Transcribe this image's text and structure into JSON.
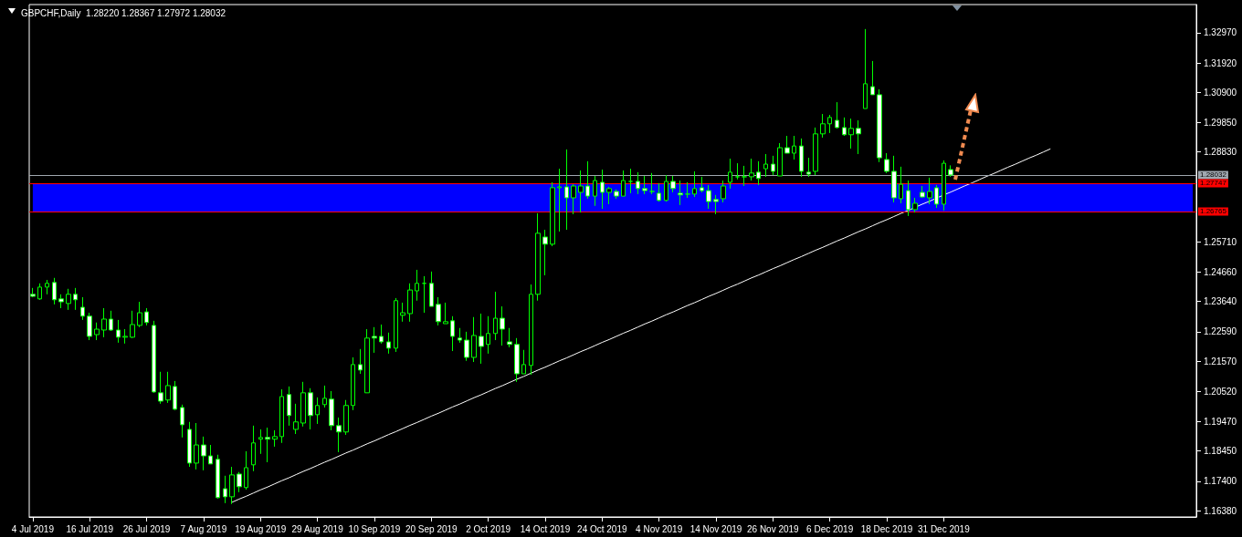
{
  "chart_data": {
    "type": "candlestick",
    "title": "GBPCHF,Daily  1.28220 1.28367 1.27972 1.28032",
    "categories": [
      "4 Jul 2019",
      null,
      null,
      null,
      null,
      null,
      null,
      null,
      "16 Jul 2019",
      null,
      null,
      null,
      null,
      null,
      null,
      null,
      "26 Jul 2019",
      null,
      null,
      null,
      null,
      null,
      null,
      null,
      "7 Aug 2019",
      null,
      null,
      null,
      null,
      null,
      null,
      null,
      "19 Aug 2019",
      null,
      null,
      null,
      null,
      null,
      null,
      null,
      "29 Aug 2019",
      null,
      null,
      null,
      null,
      null,
      null,
      null,
      "10 Sep 2019",
      null,
      null,
      null,
      null,
      null,
      null,
      null,
      "20 Sep 2019",
      null,
      null,
      null,
      null,
      null,
      null,
      null,
      "2 Oct 2019",
      null,
      null,
      null,
      null,
      null,
      null,
      null,
      "14 Oct 2019",
      null,
      null,
      null,
      null,
      null,
      null,
      null,
      "24 Oct 2019",
      null,
      null,
      null,
      null,
      null,
      null,
      null,
      "4 Nov 2019",
      null,
      null,
      null,
      null,
      null,
      null,
      null,
      "14 Nov 2019",
      null,
      null,
      null,
      null,
      null,
      null,
      null,
      "26 Nov 2019",
      null,
      null,
      null,
      null,
      null,
      null,
      null,
      "6 Dec 2019",
      null,
      null,
      null,
      null,
      null,
      null,
      null,
      "18 Dec 2019",
      null,
      null,
      null,
      null,
      null,
      null,
      null,
      "31 Dec 2019",
      null,
      null,
      null,
      null,
      null,
      null,
      null,
      null,
      null,
      null,
      null,
      null,
      null,
      null,
      null,
      null,
      null,
      null,
      null,
      null,
      null,
      null,
      null,
      null,
      null,
      null,
      null,
      null,
      null,
      null,
      null,
      null,
      null,
      null,
      null
    ],
    "color": "#00ff00",
    "ohlc": [
      [
        1.2389,
        1.2411,
        1.2379,
        1.2382
      ],
      [
        1.2373,
        1.2427,
        1.237,
        1.2414
      ],
      [
        1.2414,
        1.2439,
        1.2389,
        1.2427
      ],
      [
        1.243,
        1.2446,
        1.2354,
        1.237
      ],
      [
        1.2373,
        1.2389,
        1.2341,
        1.2363
      ],
      [
        1.2357,
        1.2408,
        1.2335,
        1.2389
      ],
      [
        1.2389,
        1.2411,
        1.2335,
        1.237
      ],
      [
        1.2344,
        1.2379,
        1.23,
        1.2313
      ],
      [
        1.2313,
        1.2325,
        1.223,
        1.2243
      ],
      [
        1.2249,
        1.2291,
        1.223,
        1.2268
      ],
      [
        1.2265,
        1.2341,
        1.224,
        1.2303
      ],
      [
        1.2303,
        1.2332,
        1.2262,
        1.2265
      ],
      [
        1.2265,
        1.23,
        1.2221,
        1.224
      ],
      [
        1.224,
        1.2268,
        1.2218,
        1.2243
      ],
      [
        1.224,
        1.2332,
        1.2237,
        1.2284
      ],
      [
        1.2281,
        1.2363,
        1.2275,
        1.2325
      ],
      [
        1.2328,
        1.2341,
        1.2281,
        1.2291
      ],
      [
        1.2281,
        1.2297,
        1.2047,
        1.205
      ],
      [
        1.2047,
        1.212,
        1.2009,
        1.2018
      ],
      [
        1.2022,
        1.212,
        1.2012,
        1.2072
      ],
      [
        1.2069,
        1.2088,
        1.1987,
        1.199
      ],
      [
        1.1996,
        1.2006,
        1.1892,
        1.1936
      ],
      [
        1.192,
        1.1946,
        1.179,
        1.1803
      ],
      [
        1.1803,
        1.1942,
        1.1781,
        1.1866
      ],
      [
        1.1866,
        1.1895,
        1.1778,
        1.1828
      ],
      [
        1.1828,
        1.1866,
        1.18,
        1.18
      ],
      [
        1.1816,
        1.1832,
        1.168,
        1.1683
      ],
      [
        1.1714,
        1.1759,
        1.1664,
        1.1686
      ],
      [
        1.1686,
        1.179,
        1.1661,
        1.1762
      ],
      [
        1.1765,
        1.1772,
        1.1702,
        1.1721
      ],
      [
        1.1718,
        1.1844,
        1.1711,
        1.1787
      ],
      [
        1.1797,
        1.1933,
        1.1775,
        1.1873
      ],
      [
        1.1886,
        1.192,
        1.1835,
        1.1892
      ],
      [
        1.1892,
        1.1926,
        1.1806,
        1.1886
      ],
      [
        1.1886,
        1.1917,
        1.186,
        1.1895
      ],
      [
        1.1895,
        1.2059,
        1.1873,
        1.2034
      ],
      [
        1.2041,
        1.2069,
        1.1933,
        1.1968
      ],
      [
        1.192,
        1.2009,
        1.1904,
        1.1946
      ],
      [
        1.1942,
        1.2085,
        1.193,
        1.2047
      ],
      [
        1.2047,
        1.2063,
        1.192,
        1.1968
      ],
      [
        1.1971,
        1.2031,
        1.1939,
        1.2003
      ],
      [
        1.2006,
        1.2072,
        1.1996,
        1.2028
      ],
      [
        1.2025,
        1.2053,
        1.1917,
        1.1933
      ],
      [
        1.1933,
        1.1961,
        1.1841,
        1.1911
      ],
      [
        1.1911,
        1.2022,
        1.1901,
        1.2003
      ],
      [
        1.2003,
        1.217,
        1.1987,
        1.2145
      ],
      [
        1.2145,
        1.2199,
        1.2113,
        1.2126
      ],
      [
        1.2047,
        1.2268,
        1.2047,
        1.2237
      ],
      [
        1.2243,
        1.2275,
        1.2186,
        1.2237
      ],
      [
        1.2243,
        1.2284,
        1.2218,
        1.2224
      ],
      [
        1.2224,
        1.2256,
        1.2183,
        1.2202
      ],
      [
        1.2202,
        1.2376,
        1.2189,
        1.2367
      ],
      [
        1.2316,
        1.236,
        1.2294,
        1.2325
      ],
      [
        1.2322,
        1.2427,
        1.2294,
        1.2404
      ],
      [
        1.2401,
        1.2474,
        1.2367,
        1.2427
      ],
      [
        1.2427,
        1.2452,
        1.2325,
        1.2427
      ],
      [
        1.2427,
        1.2468,
        1.2347,
        1.2347
      ],
      [
        1.2354,
        1.2379,
        1.2281,
        1.2294
      ],
      [
        1.2287,
        1.236,
        1.2287,
        1.2294
      ],
      [
        1.2297,
        1.2313,
        1.2192,
        1.2243
      ],
      [
        1.2237,
        1.2272,
        1.2221,
        1.223
      ],
      [
        1.223,
        1.2259,
        1.2158,
        1.217
      ],
      [
        1.217,
        1.231,
        1.2154,
        1.2246
      ],
      [
        1.2243,
        1.2322,
        1.2148,
        1.2208
      ],
      [
        1.2215,
        1.2313,
        1.2183,
        1.2253
      ],
      [
        1.2253,
        1.2398,
        1.223,
        1.2306
      ],
      [
        1.2306,
        1.2347,
        1.2211,
        1.2268
      ],
      [
        1.2224,
        1.2272,
        1.2205,
        1.2215
      ],
      [
        1.2215,
        1.2237,
        1.2085,
        1.2113
      ],
      [
        1.2113,
        1.2196,
        1.2113,
        1.2145
      ],
      [
        1.2142,
        1.2423,
        1.211,
        1.2389
      ],
      [
        1.2389,
        1.267,
        1.2367,
        1.2601
      ],
      [
        1.2588,
        1.2613,
        1.2455,
        1.2563
      ],
      [
        1.2563,
        1.2778,
        1.2556,
        1.2759
      ],
      [
        1.2759,
        1.2825,
        1.2607,
        1.2762
      ],
      [
        1.2762,
        1.2892,
        1.2613,
        1.2724
      ],
      [
        1.2724,
        1.2771,
        1.2667,
        1.2765
      ],
      [
        1.2743,
        1.2819,
        1.2673,
        1.2765
      ],
      [
        1.2765,
        1.2851,
        1.2721,
        1.273
      ],
      [
        1.273,
        1.28,
        1.2696,
        1.2784
      ],
      [
        1.2778,
        1.2822,
        1.2686,
        1.2743
      ],
      [
        1.2743,
        1.2762,
        1.2702,
        1.2756
      ],
      [
        1.2746,
        1.2753,
        1.2721,
        1.273
      ],
      [
        1.273,
        1.2819,
        1.273,
        1.2784
      ],
      [
        1.2781,
        1.2825,
        1.274,
        1.2781
      ],
      [
        1.2781,
        1.2813,
        1.2737,
        1.2756
      ],
      [
        1.2756,
        1.28,
        1.2737,
        1.2749
      ],
      [
        1.2746,
        1.281,
        1.2737,
        1.2746
      ],
      [
        1.274,
        1.2775,
        1.2711,
        1.2715
      ],
      [
        1.2715,
        1.2803,
        1.2711,
        1.2781
      ],
      [
        1.2781,
        1.28,
        1.2743,
        1.2756
      ],
      [
        1.274,
        1.2784,
        1.2699,
        1.2734
      ],
      [
        1.2737,
        1.2778,
        1.2724,
        1.2737
      ],
      [
        1.2737,
        1.2816,
        1.2727,
        1.2756
      ],
      [
        1.2759,
        1.2797,
        1.2743,
        1.2749
      ],
      [
        1.2749,
        1.2768,
        1.2686,
        1.2711
      ],
      [
        1.2718,
        1.2734,
        1.2667,
        1.2711
      ],
      [
        1.2721,
        1.2784,
        1.2708,
        1.2765
      ],
      [
        1.2778,
        1.286,
        1.2756,
        1.2813
      ],
      [
        1.2797,
        1.2844,
        1.2788,
        1.2797
      ],
      [
        1.2797,
        1.2835,
        1.2765,
        1.2797
      ],
      [
        1.2797,
        1.286,
        1.2784,
        1.281
      ],
      [
        1.2813,
        1.2851,
        1.2768,
        1.2791
      ],
      [
        1.2825,
        1.2876,
        1.2797,
        1.2841
      ],
      [
        1.2841,
        1.287,
        1.2803,
        1.2816
      ],
      [
        1.28,
        1.2914,
        1.28,
        1.2898
      ],
      [
        1.2898,
        1.2939,
        1.2879,
        1.2879
      ],
      [
        1.2879,
        1.2939,
        1.2857,
        1.2904
      ],
      [
        1.2904,
        1.293,
        1.2797,
        1.2816
      ],
      [
        1.2813,
        1.2863,
        1.2797,
        1.2806
      ],
      [
        1.2816,
        1.2968,
        1.2803,
        1.2946
      ],
      [
        1.2946,
        1.3015,
        1.2933,
        1.2981
      ],
      [
        1.2981,
        1.3012,
        1.2949,
        1.3003
      ],
      [
        1.2993,
        1.3056,
        1.2965,
        1.2968
      ],
      [
        1.2968,
        1.3003,
        1.2939,
        1.2943
      ],
      [
        1.2943,
        1.2999,
        1.2895,
        1.2965
      ],
      [
        1.2965,
        1.2993,
        1.2876,
        1.2946
      ],
      [
        1.3034,
        1.331,
        1.3034,
        1.312
      ],
      [
        1.311,
        1.3199,
        1.3082,
        1.3082
      ],
      [
        1.3082,
        1.3101,
        1.2848,
        1.2863
      ],
      [
        1.2857,
        1.2879,
        1.281,
        1.2816
      ],
      [
        1.2816,
        1.287,
        1.2708,
        1.2724
      ],
      [
        1.2721,
        1.2832,
        1.2705,
        1.2771
      ],
      [
        1.2749,
        1.2784,
        1.2661,
        1.2683
      ],
      [
        1.2683,
        1.2724,
        1.2673,
        1.2705
      ],
      [
        1.2743,
        1.2765,
        1.2724,
        1.2727
      ],
      [
        1.2724,
        1.2794,
        1.2702,
        1.2746
      ],
      [
        1.2759,
        1.2768,
        1.2689,
        1.2702
      ],
      [
        1.2702,
        1.2854,
        1.268,
        1.2844
      ],
      [
        1.2822,
        1.28367,
        1.27972,
        1.28032
      ],
      null,
      null,
      null,
      null,
      null,
      null,
      null,
      null,
      null,
      null,
      null,
      null,
      null,
      null,
      null,
      null,
      null,
      null,
      null,
      null,
      null,
      null,
      null,
      null,
      null,
      null,
      null,
      null,
      null,
      null,
      null,
      null,
      null,
      null
    ],
    "series": [
      {
        "type": "line",
        "color": "#ffffff",
        "values": [
          null,
          null,
          null,
          null,
          null,
          null,
          null,
          null,
          null,
          null,
          null,
          null,
          null,
          null,
          null,
          null,
          null,
          null,
          null,
          null,
          null,
          null,
          null,
          null,
          null,
          null,
          null,
          null,
          1.1667,
          1.1678,
          1.1688,
          1.1699,
          1.171,
          1.172,
          1.1731,
          1.1742,
          1.1752,
          1.1763,
          1.1774,
          1.1784,
          1.1795,
          1.1806,
          1.1816,
          1.1827,
          1.1838,
          1.1848,
          1.1859,
          1.187,
          1.188,
          1.1891,
          1.1902,
          1.1912,
          1.1923,
          1.1934,
          1.1944,
          1.1955,
          1.1966,
          1.1976,
          1.1987,
          1.1998,
          1.2008,
          1.2019,
          1.203,
          1.204,
          1.2051,
          1.2062,
          1.2072,
          1.2083,
          1.2094,
          1.2104,
          1.2115,
          1.2126,
          1.2136,
          1.2147,
          1.2158,
          1.2168,
          1.2179,
          1.219,
          1.22,
          1.2211,
          1.2222,
          1.2232,
          1.2243,
          1.2254,
          1.2264,
          1.2275,
          1.2286,
          1.2296,
          1.2307,
          1.2318,
          1.2328,
          1.2339,
          1.235,
          1.236,
          1.2371,
          1.2382,
          1.2392,
          1.2403,
          1.2414,
          1.2424,
          1.2435,
          1.2446,
          1.2456,
          1.2467,
          1.2478,
          1.2488,
          1.2499,
          1.251,
          1.252,
          1.2531,
          1.2542,
          1.2552,
          1.2563,
          1.2574,
          1.2584,
          1.2595,
          1.2606,
          1.2616,
          1.2627,
          1.2638,
          1.2648,
          1.2659,
          1.267,
          1.268,
          1.2691,
          1.2702,
          1.2712,
          1.2723,
          1.2734,
          1.2744,
          1.2755,
          1.2766,
          1.2776,
          1.2787,
          1.2798,
          1.2808,
          1.2819,
          1.283,
          1.284,
          1.2851,
          1.2862,
          1.2872,
          1.2883,
          1.2894,
          null,
          null,
          null,
          null,
          null,
          null,
          null,
          null,
          null,
          null,
          null,
          null,
          null,
          null,
          null,
          null,
          null,
          null,
          null,
          null
        ]
      }
    ],
    "ylim": [
      1.1616,
      1.3395
    ],
    "yticks": [
      {
        "value": 1.3297,
        "label": "1.32970"
      },
      {
        "value": 1.3192,
        "label": "1.31920"
      },
      {
        "value": 1.309,
        "label": "1.30900"
      },
      {
        "value": 1.2985,
        "label": "1.29850"
      },
      {
        "value": 1.2883,
        "label": "1.28830"
      },
      {
        "value": 1.2571,
        "label": "1.25710"
      },
      {
        "value": 1.2466,
        "label": "1.24660"
      },
      {
        "value": 1.2364,
        "label": "1.23640"
      },
      {
        "value": 1.2259,
        "label": "1.22590"
      },
      {
        "value": 1.2157,
        "label": "1.21570"
      },
      {
        "value": 1.2052,
        "label": "1.20520"
      },
      {
        "value": 1.1947,
        "label": "1.19470"
      },
      {
        "value": 1.1845,
        "label": "1.18450"
      },
      {
        "value": 1.174,
        "label": "1.17400"
      },
      {
        "value": 1.1638,
        "label": "1.16380"
      }
    ],
    "ref_lines": [
      {
        "axis": "y",
        "value": 1.28032,
        "label": "1.28032",
        "color": "#a0a8b0"
      },
      {
        "axis": "y",
        "value": 1.27747,
        "label": "1.27747",
        "color": "#ff0000"
      },
      {
        "axis": "y",
        "value": 1.26765,
        "label": "1.26765",
        "color": "#ff0000"
      }
    ],
    "bands": [
      {
        "axis": "y",
        "from": 1.26765,
        "to": 1.27747,
        "color": "#0000ff"
      }
    ],
    "grid": false
  }
}
